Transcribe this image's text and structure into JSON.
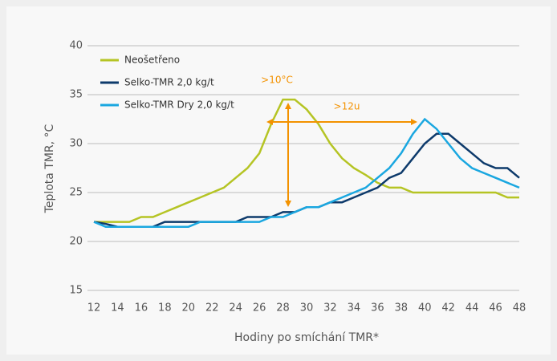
{
  "chart_data": {
    "type": "line",
    "y_label": "Teplota TMR, °C",
    "x_label": "Hodiny po smíchání TMR*",
    "x": [
      12,
      13,
      14,
      15,
      16,
      17,
      18,
      19,
      20,
      21,
      22,
      23,
      24,
      25,
      26,
      27,
      28,
      29,
      30,
      31,
      32,
      33,
      34,
      35,
      36,
      37,
      38,
      39,
      40,
      41,
      42,
      43,
      44,
      45,
      46,
      47,
      48
    ],
    "series": [
      {
        "name": "Neošetřeno",
        "color": "#b5c424",
        "values": [
          22,
          22,
          22,
          22,
          22.5,
          22.5,
          23,
          23.5,
          24,
          24.5,
          25,
          25.5,
          26.5,
          27.5,
          29,
          32,
          34.5,
          34.5,
          33.5,
          32,
          30,
          28.5,
          27.5,
          26.8,
          26,
          25.5,
          25.5,
          25,
          25,
          25,
          25,
          25,
          25,
          25,
          25,
          24.5,
          24.5
        ]
      },
      {
        "name": "Selko-TMR 2,0 kg/t",
        "color": "#0d3a6b",
        "values": [
          22,
          21.8,
          21.5,
          21.5,
          21.5,
          21.5,
          22,
          22,
          22,
          22,
          22,
          22,
          22,
          22.5,
          22.5,
          22.5,
          23,
          23,
          23.5,
          23.5,
          24,
          24,
          24.5,
          25,
          25.5,
          26.5,
          27,
          28.5,
          30,
          31,
          31,
          30,
          29,
          28,
          27.5,
          27.5,
          26.5
        ]
      },
      {
        "name": "Selko-TMR Dry 2,0 kg/t",
        "color": "#1aa7e0",
        "values": [
          22,
          21.5,
          21.5,
          21.5,
          21.5,
          21.5,
          21.5,
          21.5,
          21.5,
          22,
          22,
          22,
          22,
          22,
          22,
          22.5,
          22.5,
          23,
          23.5,
          23.5,
          24,
          24.5,
          25,
          25.5,
          26.5,
          27.5,
          29,
          31,
          32.5,
          31.5,
          30,
          28.5,
          27.5,
          27,
          26.5,
          26,
          25.5
        ]
      }
    ],
    "annotations": [
      ">10°C",
      ">12u"
    ],
    "xlim": [
      12,
      48
    ],
    "xticks": [
      12,
      14,
      16,
      18,
      20,
      22,
      24,
      26,
      28,
      30,
      32,
      34,
      36,
      38,
      40,
      42,
      44,
      46,
      48
    ],
    "ylim": [
      15,
      40
    ],
    "yticks": [
      15,
      20,
      25,
      30,
      35,
      40
    ],
    "grid": true
  }
}
